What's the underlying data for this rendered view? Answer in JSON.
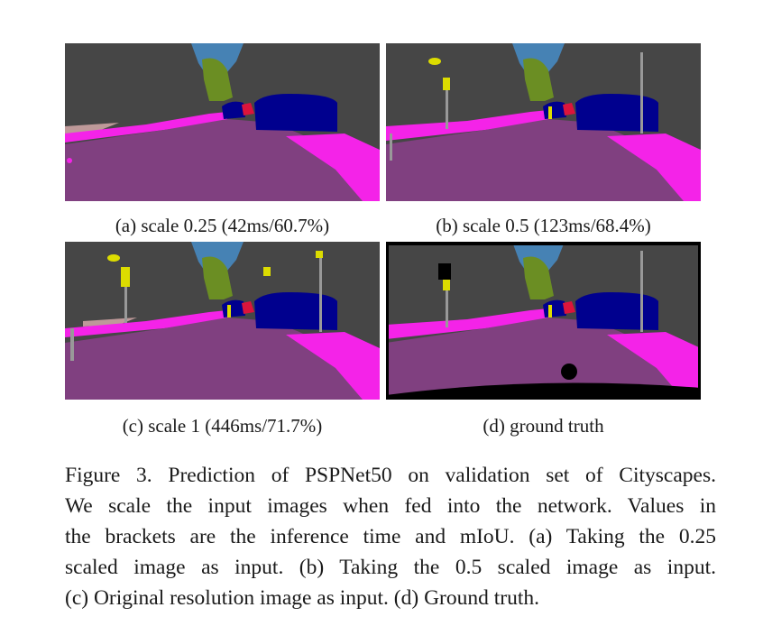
{
  "figure": {
    "panels": [
      {
        "id": "a",
        "caption": "(a) scale 0.25 (42ms/60.7%)"
      },
      {
        "id": "b",
        "caption": "(b) scale 0.5 (123ms/68.4%)"
      },
      {
        "id": "c",
        "caption": "(c) scale 1 (446ms/71.7%)"
      },
      {
        "id": "d",
        "caption": "(d) ground truth"
      }
    ],
    "caption_lines": [
      "Figure 3. Prediction of PSPNet50 on validation set of Cityscapes.",
      "We scale the input images when fed into the network.  Values in",
      "the brackets are the inference time and mIoU. (a) Taking the 0.25",
      "scaled image as input.  (b) Taking the 0.5 scaled image as input.",
      "(c) Original resolution image as input. (d) Ground truth."
    ]
  },
  "colors": {
    "building": "#464646",
    "road": "#804080",
    "sidewalk": "#f423e8",
    "sky": "#4682b4",
    "vegetation": "#6b8e23",
    "car": "#00008e",
    "person": "#dc143c",
    "pole": "#999999",
    "traffic_sign": "#dcdc00",
    "wall": "#be9999",
    "void": "#000000"
  }
}
